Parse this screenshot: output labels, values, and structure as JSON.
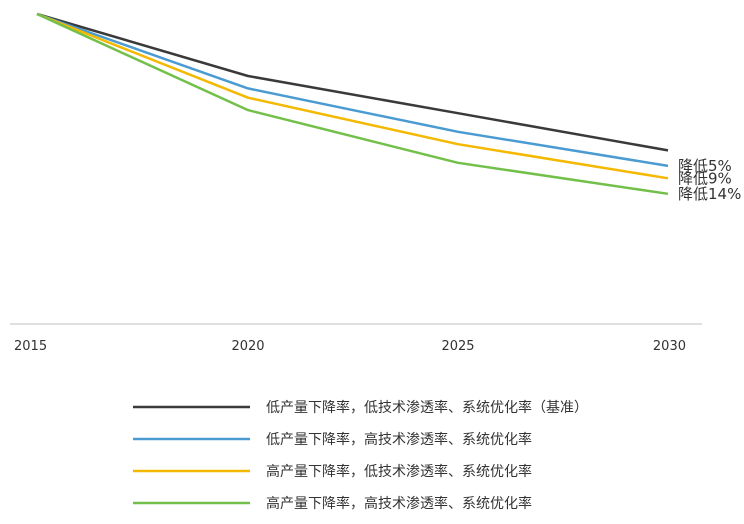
{
  "chart_data": {
    "type": "line",
    "x": [
      "2015",
      "2020",
      "2025",
      "2030"
    ],
    "ylim": [
      0,
      100
    ],
    "series": [
      {
        "name": "低产量下降率，低技术渗透率、系统优化率（基准）",
        "color": "#3a3a3a",
        "values": [
          100,
          80,
          68,
          56
        ],
        "end_label": ""
      },
      {
        "name": "低产量下降率，高技术渗透率、系统优化率",
        "color": "#4a9bd1",
        "values": [
          100,
          76,
          62,
          51
        ],
        "end_label": "降低5%"
      },
      {
        "name": "高产量下降率，低技术渗透率、系统优化率",
        "color": "#f5b800",
        "values": [
          100,
          73,
          58,
          47
        ],
        "end_label": "降低9%"
      },
      {
        "name": "高产量下降率，高技术渗透率、系统优化率",
        "color": "#72c04a",
        "values": [
          100,
          69,
          52,
          42
        ],
        "end_label": "降低14%"
      }
    ],
    "grid": false,
    "legend_position": "bottom"
  }
}
